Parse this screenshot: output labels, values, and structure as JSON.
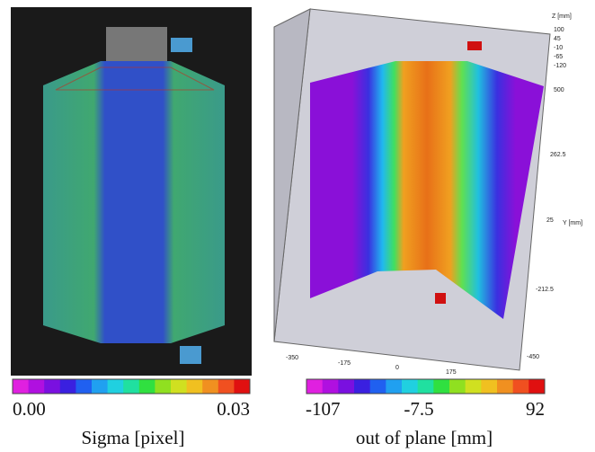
{
  "left_panel": {
    "colorbar_min": "0.00",
    "colorbar_max": "0.03",
    "caption": "Sigma [pixel]"
  },
  "right_panel": {
    "colorbar_min": "-107",
    "colorbar_mid": "-7.5",
    "colorbar_max": "92",
    "caption": "out of plane [mm]",
    "z_axis": {
      "title": "Z [mm]",
      "ticks": [
        "100",
        "45",
        "-10",
        "-65",
        "-120"
      ]
    },
    "y_axis": {
      "title": "Y [mm]",
      "ticks": [
        "500",
        "262.5",
        "25",
        "-212.5",
        "-450"
      ]
    },
    "x_axis": {
      "ticks": [
        "-350",
        "-175",
        "0",
        "175"
      ]
    }
  }
}
